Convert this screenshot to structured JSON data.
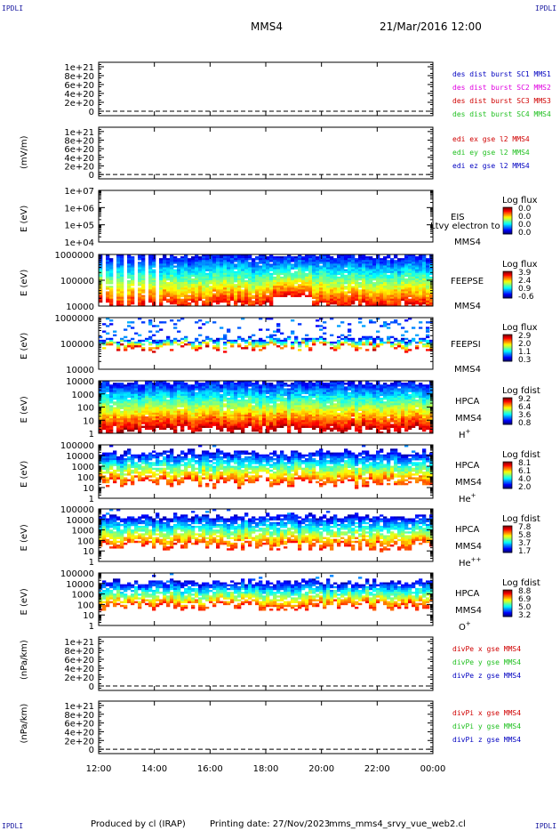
{
  "header": {
    "corner_left": "IPDLI",
    "corner_right": "IPDLI",
    "title": "MMS4",
    "datetime": "21/Mar/2016 12:00"
  },
  "footer": {
    "produced": "Produced by cl (IRAP)",
    "printing": "Printing date: 27/Nov/2023",
    "script": "mms_mms4_srvy_vue_web2.cl",
    "corner_left": "IPDLI",
    "corner_right": "IPDLI"
  },
  "colors": {
    "red": "#d00000",
    "magenta": "#e000e0",
    "green": "#20c020",
    "blue": "#0000c0"
  },
  "chart_data": [
    {
      "type": "line",
      "panel": "des dist burst",
      "ylabel": "",
      "ylim": [
        -1e+20,
        1.1e+21
      ],
      "yticks": [
        0,
        2e+20,
        4e+20,
        6e+20,
        8e+20,
        1e+21
      ],
      "yticklabels": [
        "0",
        "2e+20",
        "4e+20",
        "6e+20",
        "8e+20",
        "1e+21"
      ],
      "series": [
        {
          "name": "des dist burst SC1 MMS1",
          "color": "#0000c0"
        },
        {
          "name": "des dist burst SC2 MMS2",
          "color": "#e000e0"
        },
        {
          "name": "des dist burst SC3 MMS3",
          "color": "#d00000"
        },
        {
          "name": "des dist burst SC4 MMS4",
          "color": "#20c020"
        }
      ]
    },
    {
      "type": "line",
      "panel": "edi",
      "ylabel": "(mV/m)",
      "ylim": [
        -1e+20,
        1.1e+21
      ],
      "yticks": [
        0,
        2e+20,
        4e+20,
        6e+20,
        8e+20,
        1e+21
      ],
      "yticklabels": [
        "0",
        "2e+20",
        "4e+20",
        "6e+20",
        "8e+20",
        "1e+21"
      ],
      "series": [
        {
          "name": "edi ex gse l2 MMS4",
          "color": "#d00000"
        },
        {
          "name": "edi ey gse l2 MMS4",
          "color": "#20c020"
        },
        {
          "name": "edi ez gse l2 MMS4",
          "color": "#0000c0"
        }
      ]
    },
    {
      "type": "heatmap",
      "panel": "EIS",
      "ylabel": "E (eV)",
      "log": true,
      "ylim": [
        10000.0,
        10000000.0
      ],
      "yticklabels": [
        "1e+07",
        "1e+06",
        "1e+05",
        "1e+04"
      ],
      "side_labels": [
        "EIS",
        "MMS4"
      ],
      "overlay_text": "Ltvy electron to",
      "cbar_title": "Log flux",
      "cbar_ticks": [
        "0.0",
        "0.0",
        "0.0",
        "0.0"
      ],
      "empty": true
    },
    {
      "type": "heatmap",
      "panel": "FEEPSE",
      "ylabel": "E (eV)",
      "log": true,
      "ylim": [
        10000.0,
        1000000.0
      ],
      "yticklabels": [
        "1000000",
        "100000",
        "10000"
      ],
      "side_labels": [
        "FEEPSE",
        "MMS4"
      ],
      "cbar_title": "Log flux",
      "cbar_ticks": [
        "3.9",
        "2.4",
        "0.9",
        "-0.6"
      ]
    },
    {
      "type": "heatmap",
      "panel": "FEEPSI",
      "ylabel": "E (eV)",
      "log": true,
      "ylim": [
        10000.0,
        1000000.0
      ],
      "yticklabels": [
        "1000000",
        "100000",
        "10000"
      ],
      "side_labels": [
        "FEEPSI",
        "MMS4"
      ],
      "cbar_title": "Log flux",
      "cbar_ticks": [
        "2.9",
        "2.0",
        "1.1",
        "0.3"
      ]
    },
    {
      "type": "heatmap",
      "panel": "HPCA H+",
      "ylabel": "E (eV)",
      "log": true,
      "ylim": [
        1,
        10000.0
      ],
      "yticklabels": [
        "10000",
        "1000",
        "100",
        "10",
        "1"
      ],
      "side_labels": [
        "HPCA",
        "MMS4"
      ],
      "species": "H",
      "species_sup": "+",
      "cbar_title": "Log fdist",
      "cbar_ticks": [
        "9.2",
        "6.4",
        "3.6",
        "0.8"
      ]
    },
    {
      "type": "heatmap",
      "panel": "HPCA He+",
      "ylabel": "E (eV)",
      "log": true,
      "ylim": [
        1,
        100000.0
      ],
      "yticklabels": [
        "100000",
        "10000",
        "1000",
        "100",
        "10",
        "1"
      ],
      "side_labels": [
        "HPCA",
        "MMS4"
      ],
      "species": "He",
      "species_sup": "+",
      "cbar_title": "Log fdist",
      "cbar_ticks": [
        "8.1",
        "6.1",
        "4.0",
        "2.0"
      ]
    },
    {
      "type": "heatmap",
      "panel": "HPCA He++",
      "ylabel": "E (eV)",
      "log": true,
      "ylim": [
        1,
        100000.0
      ],
      "yticklabels": [
        "100000",
        "10000",
        "1000",
        "100",
        "10",
        "1"
      ],
      "side_labels": [
        "HPCA",
        "MMS4"
      ],
      "species": "He",
      "species_sup": "++",
      "cbar_title": "Log fdist",
      "cbar_ticks": [
        "7.8",
        "5.8",
        "3.7",
        "1.7"
      ]
    },
    {
      "type": "heatmap",
      "panel": "HPCA O+",
      "ylabel": "E (eV)",
      "log": true,
      "ylim": [
        1,
        100000.0
      ],
      "yticklabels": [
        "100000",
        "10000",
        "1000",
        "100",
        "10",
        "1"
      ],
      "side_labels": [
        "HPCA",
        "MMS4"
      ],
      "species": "O",
      "species_sup": "+",
      "cbar_title": "Log fdist",
      "cbar_ticks": [
        "8.8",
        "6.9",
        "5.0",
        "3.2"
      ]
    },
    {
      "type": "line",
      "panel": "divPe",
      "ylabel": "(nPa/km)",
      "ylim": [
        -1e+20,
        1.1e+21
      ],
      "yticks": [
        0,
        2e+20,
        4e+20,
        6e+20,
        8e+20,
        1e+21
      ],
      "yticklabels": [
        "0",
        "2e+20",
        "4e+20",
        "6e+20",
        "8e+20",
        "1e+21"
      ],
      "series": [
        {
          "name": "divPe x gse MMS4",
          "color": "#d00000"
        },
        {
          "name": "divPe y gse MMS4",
          "color": "#20c020"
        },
        {
          "name": "divPe z gse MMS4",
          "color": "#0000c0"
        }
      ]
    },
    {
      "type": "line",
      "panel": "divPi",
      "ylabel": "(nPa/km)",
      "ylim": [
        -1e+20,
        1.1e+21
      ],
      "yticks": [
        0,
        2e+20,
        4e+20,
        6e+20,
        8e+20,
        1e+21
      ],
      "yticklabels": [
        "0",
        "2e+20",
        "4e+20",
        "6e+20",
        "8e+20",
        "1e+21"
      ],
      "series": [
        {
          "name": "divPi x gse MMS4",
          "color": "#d00000"
        },
        {
          "name": "divPi y gse MMS4",
          "color": "#20c020"
        },
        {
          "name": "divPi z gse MMS4",
          "color": "#0000c0"
        }
      ]
    }
  ],
  "x_axis": {
    "ticklabels": [
      "12:00",
      "14:00",
      "16:00",
      "18:00",
      "20:00",
      "22:00",
      "00:00"
    ]
  }
}
